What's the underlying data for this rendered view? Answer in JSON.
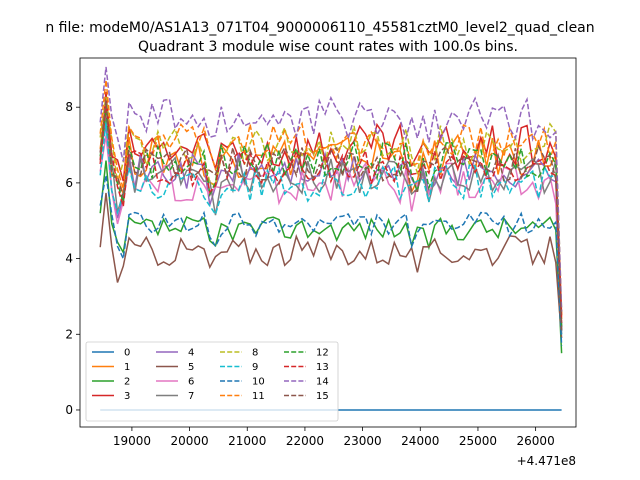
{
  "chart_data": {
    "type": "line",
    "suptitle": "n file: modeM0/AS1A13_071T04_9000006110_45581cztM0_level2_quad_clean",
    "title": "Quadrant 3 module wise count rates with 100.0s bins.",
    "xlabel": "",
    "ylabel": "",
    "x_offset_label": "+4.471e8",
    "xlim": [
      18100,
      26700
    ],
    "ylim": [
      -0.45,
      9.3
    ],
    "x_ticks": [
      19000,
      20000,
      21000,
      22000,
      23000,
      24000,
      25000,
      26000
    ],
    "x_tick_labels": [
      "19000",
      "20000",
      "21000",
      "22000",
      "23000",
      "24000",
      "25000",
      "26000"
    ],
    "y_ticks": [
      0,
      2,
      4,
      6,
      8
    ],
    "y_tick_labels": [
      "0",
      "2",
      "4",
      "6",
      "8"
    ],
    "grid": false,
    "legend_position": "lower-left",
    "legend_columns": 4,
    "x_range": [
      18450,
      26450
    ],
    "bin_size": 100,
    "series": [
      {
        "name": "0",
        "color": "#1f77b4",
        "dash": "solid",
        "level": 0.0,
        "spread": 0.0,
        "first": 0.0,
        "last": 0.0
      },
      {
        "name": "1",
        "color": "#ff7f0e",
        "dash": "solid",
        "level": 6.7,
        "spread": 0.35,
        "first": 6.9,
        "last": 2.4
      },
      {
        "name": "2",
        "color": "#2ca02c",
        "dash": "solid",
        "level": 4.8,
        "spread": 0.2,
        "first": 5.2,
        "last": 1.5
      },
      {
        "name": "3",
        "color": "#d62728",
        "dash": "solid",
        "level": 6.9,
        "spread": 0.4,
        "first": 6.5,
        "last": 2.5
      },
      {
        "name": "4",
        "color": "#9467bd",
        "dash": "solid",
        "level": 6.3,
        "spread": 0.3,
        "first": 6.8,
        "last": 2.1
      },
      {
        "name": "5",
        "color": "#8c564b",
        "dash": "solid",
        "level": 4.2,
        "spread": 0.25,
        "first": 4.3,
        "last": 1.9
      },
      {
        "name": "6",
        "color": "#e377c2",
        "dash": "solid",
        "level": 6.0,
        "spread": 0.35,
        "first": 6.3,
        "last": 2.2
      },
      {
        "name": "7",
        "color": "#7f7f7f",
        "dash": "solid",
        "level": 6.2,
        "spread": 0.3,
        "first": 6.6,
        "last": 2.0
      },
      {
        "name": "8",
        "color": "#bcbd22",
        "dash": "dashed",
        "level": 7.0,
        "spread": 0.35,
        "first": 7.2,
        "last": 2.6
      },
      {
        "name": "9",
        "color": "#17becf",
        "dash": "dashed",
        "level": 6.0,
        "spread": 0.3,
        "first": 6.2,
        "last": 2.0
      },
      {
        "name": "10",
        "color": "#1f77b4",
        "dash": "dashed",
        "level": 4.9,
        "spread": 0.2,
        "first": 5.4,
        "last": 1.7
      },
      {
        "name": "11",
        "color": "#ff7f0e",
        "dash": "dashed",
        "level": 7.1,
        "spread": 0.3,
        "first": 7.3,
        "last": 2.5
      },
      {
        "name": "12",
        "color": "#2ca02c",
        "dash": "dashed",
        "level": 6.6,
        "spread": 0.3,
        "first": 6.7,
        "last": 2.2
      },
      {
        "name": "13",
        "color": "#d62728",
        "dash": "dashed",
        "level": 6.4,
        "spread": 0.3,
        "first": 6.6,
        "last": 2.3
      },
      {
        "name": "14",
        "color": "#9467bd",
        "dash": "dashed",
        "level": 7.7,
        "spread": 0.35,
        "first": 7.6,
        "last": 2.6
      },
      {
        "name": "15",
        "color": "#8c564b",
        "dash": "dashed",
        "level": 6.5,
        "spread": 0.3,
        "first": 6.8,
        "last": 2.1
      }
    ]
  }
}
